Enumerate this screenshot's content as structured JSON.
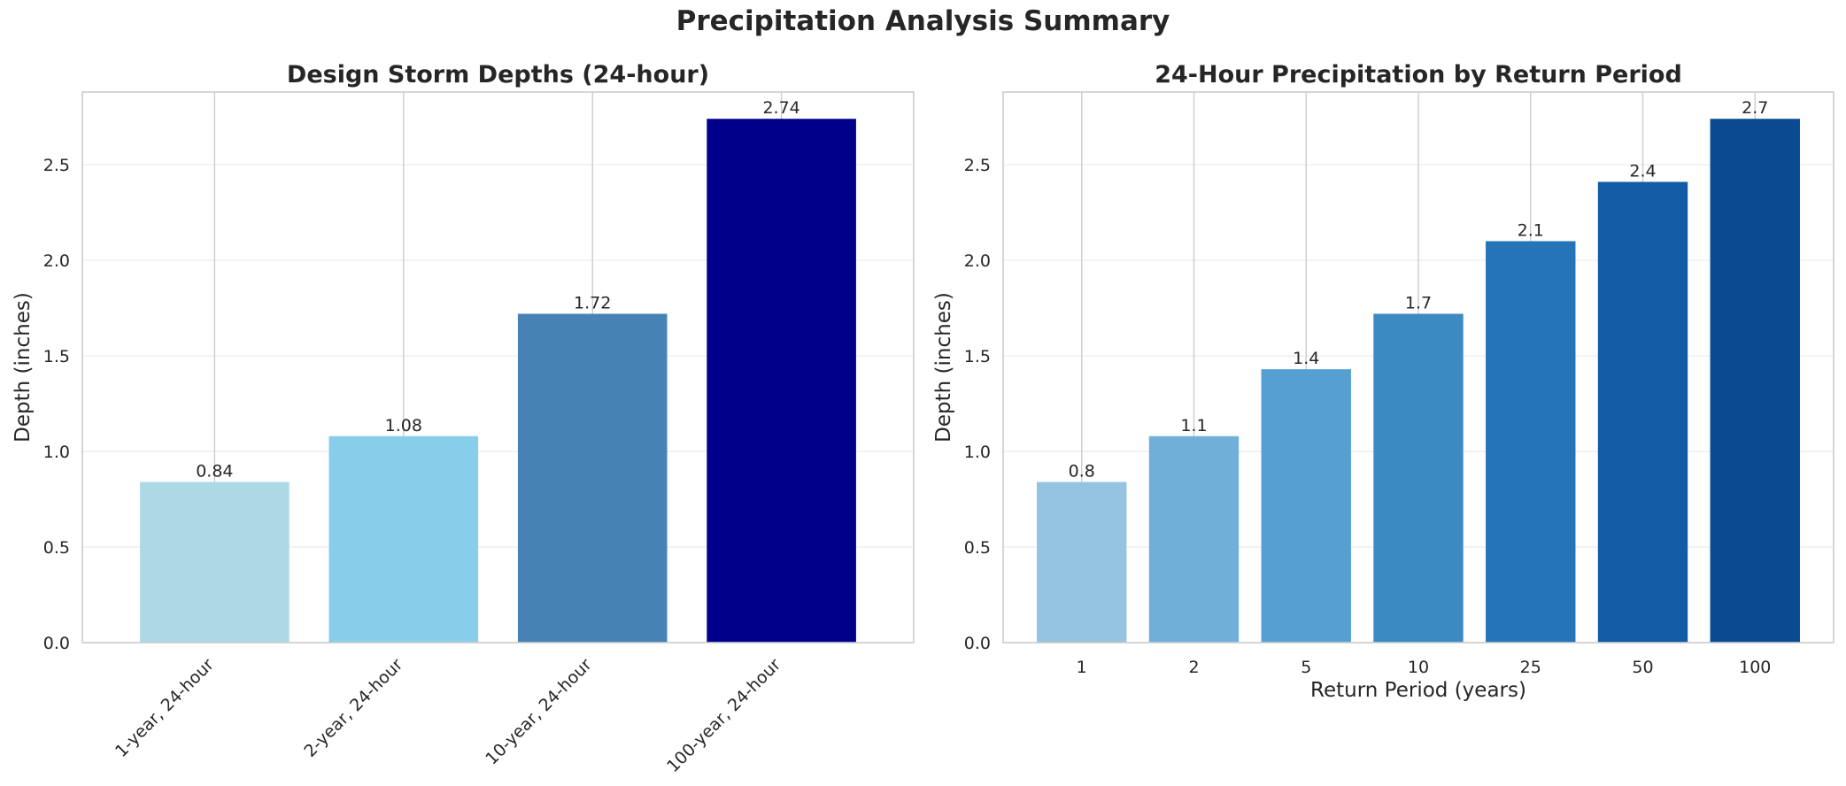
{
  "figure_title": "Precipitation Analysis Summary",
  "chart_data": [
    {
      "type": "bar",
      "title": "Design Storm Depths (24-hour)",
      "xlabel": "",
      "ylabel": "Depth (inches)",
      "categories": [
        "1-year, 24-hour",
        "2-year, 24-hour",
        "10-year, 24-hour",
        "100-year, 24-hour"
      ],
      "values": [
        0.84,
        1.08,
        1.72,
        2.74
      ],
      "data_labels": [
        "0.84",
        "1.08",
        "1.72",
        "2.74"
      ],
      "colors": [
        "#add8e6",
        "#87ceeb",
        "#4682b4",
        "#00008b"
      ],
      "ylim": [
        0,
        2.88
      ],
      "yticks": [
        "0.0",
        "0.5",
        "1.0",
        "1.5",
        "2.0",
        "2.5"
      ],
      "xtick_rotation": 45,
      "grid": true
    },
    {
      "type": "bar",
      "title": "24-Hour Precipitation by Return Period",
      "xlabel": "Return Period (years)",
      "ylabel": "Depth (inches)",
      "categories": [
        "1",
        "2",
        "5",
        "10",
        "25",
        "50",
        "100"
      ],
      "values": [
        0.84,
        1.08,
        1.43,
        1.72,
        2.1,
        2.41,
        2.74
      ],
      "data_labels": [
        "0.8",
        "1.1",
        "1.4",
        "1.7",
        "2.1",
        "2.4",
        "2.7"
      ],
      "colors": [
        "#94c4df",
        "#70b0d8",
        "#55a0d0",
        "#3b8bc2",
        "#2474b7",
        "#115ca5",
        "#0a4a90"
      ],
      "ylim": [
        0,
        2.88
      ],
      "yticks": [
        "0.0",
        "0.5",
        "1.0",
        "1.5",
        "2.0",
        "2.5"
      ],
      "xtick_rotation": 0,
      "grid": true
    }
  ]
}
